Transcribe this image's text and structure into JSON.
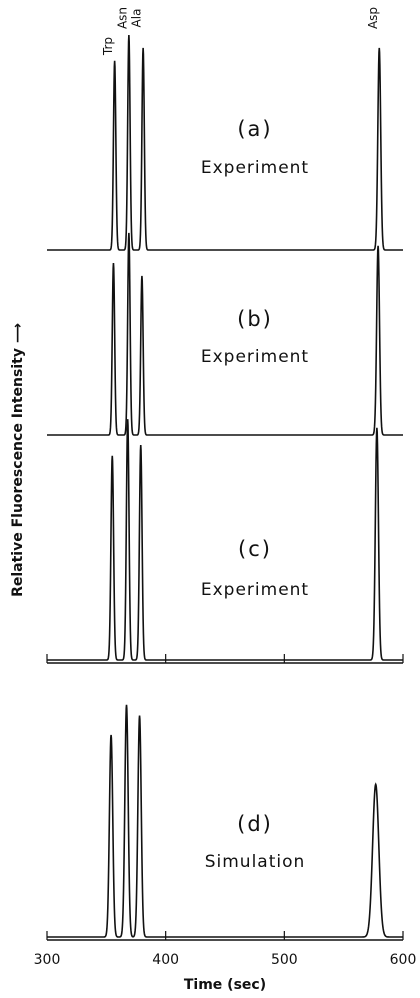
{
  "chart_data": [
    {
      "type": "line",
      "title": "(a)",
      "subtitle": "Experiment",
      "peak_labels": [
        "Trp",
        "Asn",
        "Ala",
        "Asp"
      ],
      "ylabel": "Relative Fluorescence Intensity ⟶",
      "peak_times": [
        357,
        369,
        381,
        580
      ],
      "peak_heights": [
        0.88,
        1.0,
        0.94,
        0.94
      ],
      "peak_widths": [
        1.0,
        1.0,
        1.0,
        1.2
      ],
      "xlim": [
        300,
        600
      ],
      "color": "#111111"
    },
    {
      "type": "line",
      "title": "(b)",
      "subtitle": "Experiment",
      "peak_times": [
        356,
        369,
        380,
        579
      ],
      "peak_heights": [
        0.8,
        0.94,
        0.74,
        0.88
      ],
      "peak_widths": [
        1.0,
        1.0,
        1.0,
        1.2
      ],
      "xlim": [
        300,
        600
      ],
      "color": "#111111"
    },
    {
      "type": "line",
      "title": "(c)",
      "subtitle": "Experiment",
      "peak_times": [
        355,
        368,
        379,
        578
      ],
      "peak_heights": [
        0.95,
        1.12,
        1.0,
        1.08
      ],
      "peak_widths": [
        1.1,
        1.1,
        1.1,
        1.3
      ],
      "xlim": [
        300,
        600
      ],
      "xticks": [
        300,
        400,
        500,
        600
      ],
      "color": "#111111"
    },
    {
      "type": "line",
      "title": "(d)",
      "subtitle": "Simulation",
      "peak_times": [
        354,
        367,
        378,
        577
      ],
      "peak_heights": [
        0.94,
        1.08,
        1.03,
        0.71
      ],
      "peak_widths": [
        1.4,
        1.4,
        1.4,
        2.6
      ],
      "xlim": [
        300,
        600
      ],
      "xticks": [
        300,
        400,
        500,
        600
      ],
      "xlabel": "Time (sec)",
      "color": "#111111"
    }
  ]
}
